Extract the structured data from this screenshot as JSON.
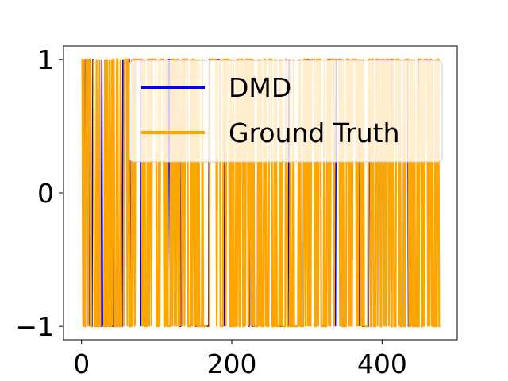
{
  "chart_data": {
    "type": "line",
    "title": "",
    "xlabel": "",
    "ylabel": "",
    "xlim": [
      -24,
      500
    ],
    "ylim": [
      -1.1,
      1.1
    ],
    "x_ticks": [
      0,
      200,
      400
    ],
    "x_tick_labels": [
      "0",
      "200",
      "400"
    ],
    "y_ticks": [
      -1,
      0,
      1
    ],
    "y_tick_labels": [
      "−1",
      "0",
      "1"
    ],
    "grid": false,
    "legend_position": "upper right",
    "x_range": [
      0,
      477
    ],
    "series": [
      {
        "name": "DMD",
        "color": "#0000ff",
        "pattern": "binary square wave switching between -1 and 1"
      },
      {
        "name": "Ground Truth",
        "color": "#ffa500",
        "pattern": "binary square wave switching between -1 and 1"
      }
    ],
    "white_gaps_x": [
      15,
      27,
      55,
      132,
      168,
      182,
      370
    ]
  }
}
